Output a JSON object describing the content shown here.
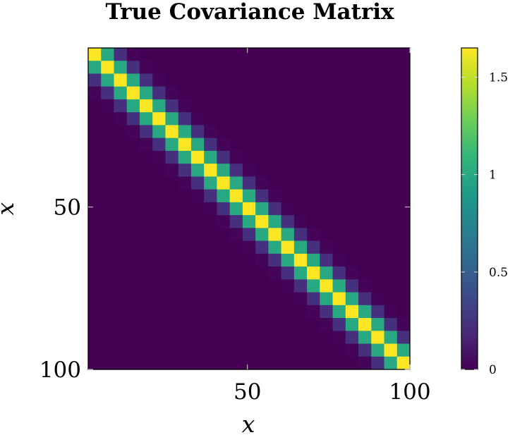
{
  "chart_data": {
    "type": "heatmap",
    "title": "True Covariance Matrix",
    "xlabel": "x",
    "ylabel": "x",
    "n": 100,
    "cell_size": 4,
    "bandwidth": 4,
    "amplitude": 1.65,
    "value_rule": "amplitude * exp(-((i - j)^2) / (2 * bandwidth^2)), evaluated on 4x4 blocks",
    "x_range": [
      1,
      100
    ],
    "y_range": [
      1,
      100
    ],
    "y_inverted": true,
    "x_ticks": [
      {
        "value": 50,
        "label": "50"
      },
      {
        "value": 100,
        "label": "100"
      }
    ],
    "y_ticks": [
      {
        "value": 50,
        "label": "50"
      },
      {
        "value": 100,
        "label": "100"
      }
    ],
    "colorbar": {
      "range": [
        0,
        1.65
      ],
      "colormap": "viridis",
      "ticks": [
        {
          "value": 0,
          "label": "0"
        },
        {
          "value": 0.5,
          "label": "0.5"
        },
        {
          "value": 1,
          "label": "1"
        },
        {
          "value": 1.5,
          "label": "1.5"
        }
      ]
    }
  }
}
